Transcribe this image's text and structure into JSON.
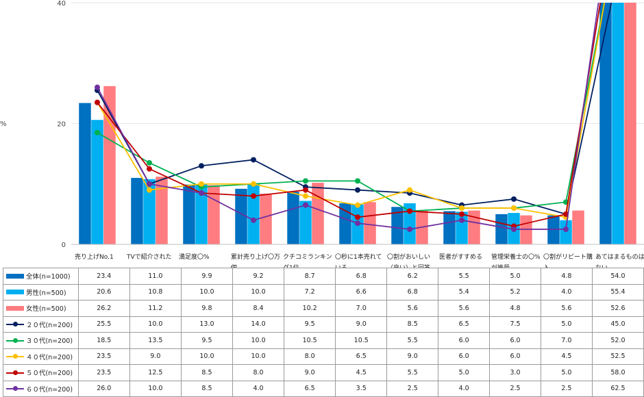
{
  "chart_data": {
    "type": "bar",
    "ylabel": "%",
    "ylim": [
      0,
      40
    ],
    "yticks": [
      0,
      20,
      40
    ],
    "grid": true,
    "legend_position": "table-left",
    "categories": [
      "売り上げNo.1",
      "TVで紹介された",
      "満足度〇%",
      "累計売り上げ〇万個",
      "クチコミランキング1位",
      "〇秒に1本売れている",
      "〇割がおいしい（良い）と回答",
      "医者がすすめる",
      "管理栄養士の〇%が推奨",
      "〇割がリピート購入",
      "あてはまるものはない"
    ],
    "category_lines": [
      [
        "売り上げNo.1"
      ],
      [
        "TVで紹介された"
      ],
      [
        "満足度〇%"
      ],
      [
        "累計売り上げ〇万",
        "個"
      ],
      [
        "クチコミランキン",
        "グ1位"
      ],
      [
        "〇秒に1本売れて",
        "いる"
      ],
      [
        "〇割がおいしい",
        "（良い）と回答"
      ],
      [
        "医者がすすめる"
      ],
      [
        "管理栄養士の〇%",
        "が推奨"
      ],
      [
        "〇割がリピート購",
        "入"
      ],
      [
        "あてはまるものは",
        "ない"
      ]
    ],
    "bar_series": [
      {
        "name": "全体(n=1000)",
        "color": "#0070c0",
        "values": [
          23.4,
          11.0,
          9.9,
          9.2,
          8.7,
          6.8,
          6.2,
          5.5,
          5.0,
          4.8,
          54.0
        ]
      },
      {
        "name": "男性(n=500)",
        "color": "#00b0f0",
        "values": [
          20.6,
          10.8,
          10.0,
          10.0,
          7.2,
          6.6,
          6.8,
          5.4,
          5.2,
          4.0,
          55.4
        ]
      },
      {
        "name": "女性(n=500)",
        "color": "#ff7c80",
        "values": [
          26.2,
          11.2,
          9.8,
          8.4,
          10.2,
          7.0,
          5.6,
          5.6,
          4.8,
          5.6,
          52.6
        ]
      }
    ],
    "line_series": [
      {
        "name": "２０代(n=200)",
        "color": "#002060",
        "values": [
          25.5,
          10.0,
          13.0,
          14.0,
          9.5,
          9.0,
          8.5,
          6.5,
          7.5,
          5.0,
          45.0
        ]
      },
      {
        "name": "３０代(n=200)",
        "color": "#00b050",
        "values": [
          18.5,
          13.5,
          9.5,
          10.0,
          10.5,
          10.5,
          5.5,
          6.0,
          6.0,
          7.0,
          52.0
        ]
      },
      {
        "name": "４０代(n=200)",
        "color": "#ffc000",
        "values": [
          23.5,
          9.0,
          10.0,
          10.0,
          8.0,
          6.5,
          9.0,
          6.0,
          6.0,
          4.5,
          52.5
        ]
      },
      {
        "name": "５０代(n=200)",
        "color": "#c00000",
        "values": [
          23.5,
          12.5,
          8.5,
          8.0,
          9.0,
          4.5,
          5.5,
          5.0,
          3.0,
          5.0,
          58.0
        ]
      },
      {
        "name": "６０代(n=200)",
        "color": "#7030a0",
        "values": [
          26.0,
          10.0,
          8.5,
          4.0,
          6.5,
          3.5,
          2.5,
          4.0,
          2.5,
          2.5,
          62.5
        ]
      }
    ]
  }
}
